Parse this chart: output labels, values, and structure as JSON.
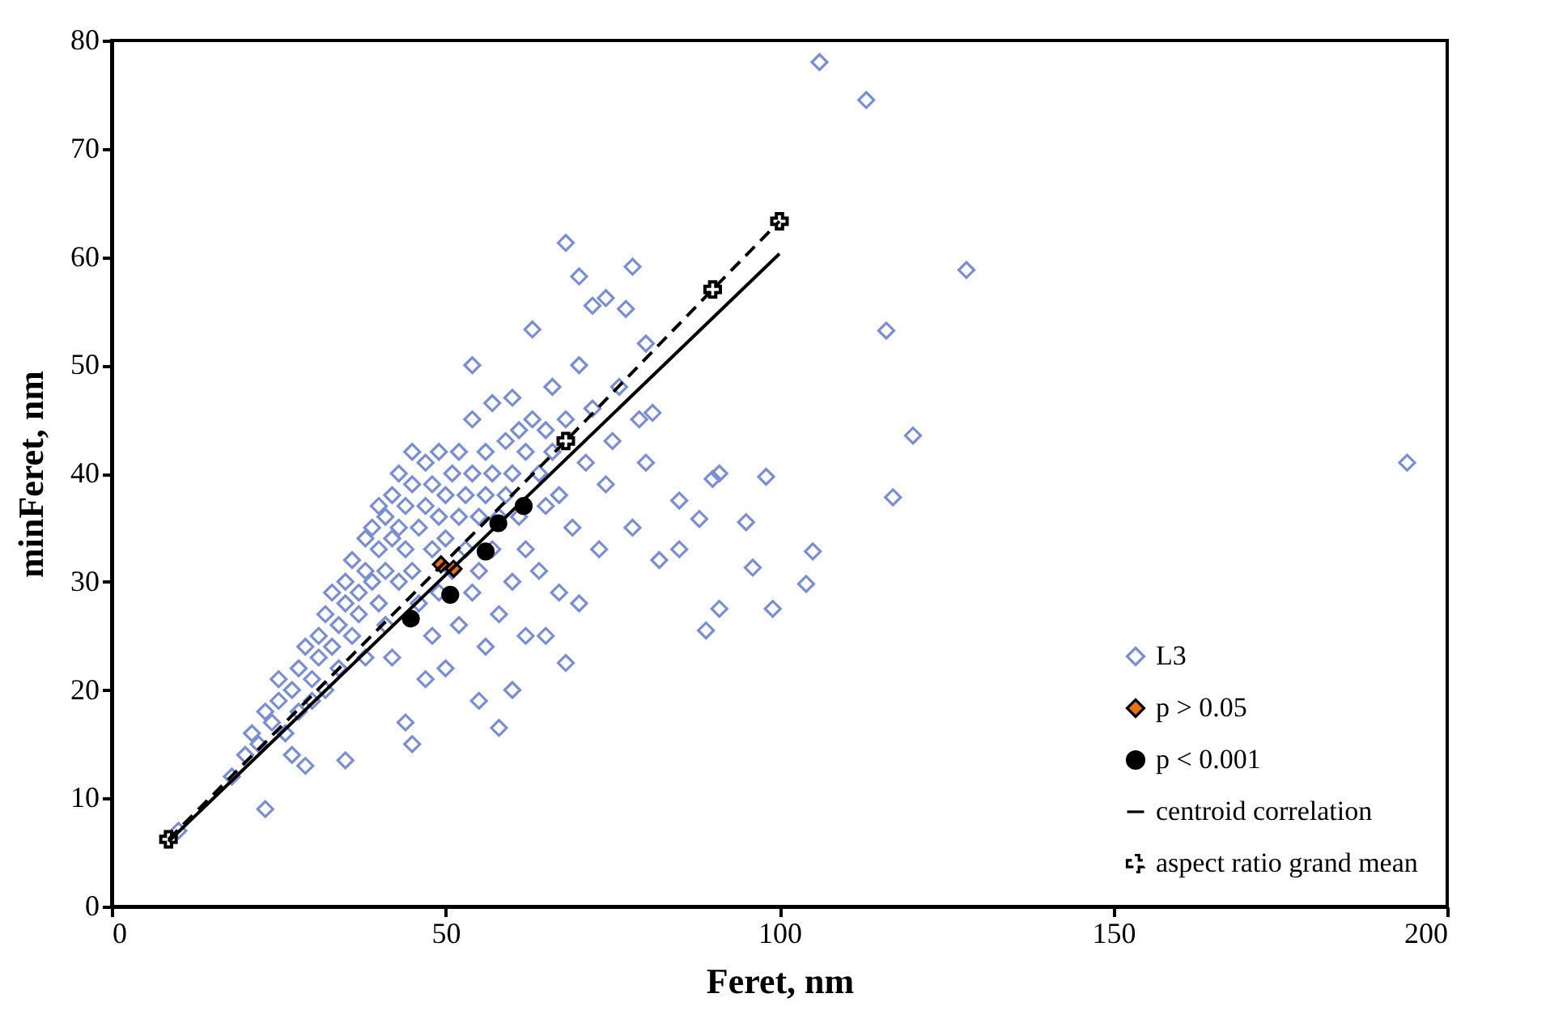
{
  "chart_data": {
    "type": "scatter",
    "xlabel": "Feret, nm",
    "ylabel": "minFeret, nm",
    "xlim": [
      0,
      200
    ],
    "ylim": [
      0,
      80
    ],
    "xticks": [
      0,
      50,
      100,
      150,
      200
    ],
    "yticks": [
      0,
      10,
      20,
      30,
      40,
      50,
      60,
      70,
      80
    ],
    "grid": false,
    "legend": "bottom right",
    "series": [
      {
        "name": "L3",
        "type": "scatter",
        "marker": "diamond",
        "color": "#7b8fd0",
        "x": [
          10,
          18,
          20,
          21,
          22,
          23,
          23,
          24,
          25,
          25,
          26,
          27,
          27,
          28,
          28,
          29,
          29,
          30,
          30,
          31,
          31,
          32,
          32,
          33,
          33,
          34,
          34,
          35,
          35,
          35,
          36,
          36,
          37,
          37,
          38,
          38,
          38,
          39,
          39,
          40,
          40,
          40,
          41,
          41,
          41,
          42,
          42,
          42,
          43,
          43,
          43,
          44,
          44,
          44,
          45,
          45,
          45,
          45,
          46,
          46,
          47,
          47,
          47,
          48,
          48,
          48,
          49,
          49,
          49,
          50,
          50,
          50,
          51,
          51,
          52,
          52,
          52,
          53,
          53,
          54,
          54,
          54,
          54,
          55,
          55,
          55,
          56,
          56,
          56,
          57,
          57,
          57,
          58,
          58,
          58,
          59,
          59,
          60,
          60,
          60,
          60,
          61,
          61,
          62,
          62,
          62,
          63,
          63,
          64,
          64,
          65,
          65,
          65,
          66,
          66,
          67,
          67,
          68,
          68,
          68,
          69,
          70,
          70,
          70,
          71,
          72,
          72,
          73,
          74,
          74,
          75,
          76,
          77,
          78,
          78,
          79,
          80,
          80,
          81,
          82,
          85,
          85,
          88,
          89,
          90,
          91,
          91,
          95,
          96,
          98,
          99,
          104,
          105,
          106,
          113,
          116,
          117,
          120,
          128,
          194
        ],
        "values": [
          7,
          12,
          14,
          16,
          15,
          18,
          9,
          17,
          19,
          21,
          16,
          20,
          14,
          22,
          18,
          13,
          24,
          21,
          19,
          25,
          23,
          27,
          20,
          24,
          29,
          26,
          22,
          28,
          30,
          13.5,
          25,
          32,
          29,
          27,
          31,
          34,
          23,
          30,
          35,
          28,
          33,
          37,
          31,
          36,
          26,
          34,
          38,
          23,
          30,
          35,
          40,
          33,
          37,
          17,
          31,
          39,
          15,
          42,
          35,
          28,
          37,
          41,
          21,
          33,
          39,
          25,
          36,
          42,
          29,
          34,
          38,
          22,
          40,
          31,
          36,
          42,
          26,
          38,
          33,
          40,
          45,
          29,
          50,
          36,
          31,
          19,
          42,
          38,
          24,
          46.5,
          40,
          33,
          36,
          27,
          16.5,
          43,
          38,
          40,
          47,
          30,
          20,
          36,
          44,
          42,
          33,
          25,
          53.3,
          45,
          40,
          31,
          44,
          37,
          25,
          42,
          48,
          38,
          29,
          61.3,
          45,
          22.5,
          35,
          58.2,
          50,
          28,
          41,
          55.5,
          46,
          33,
          56.2,
          39,
          43,
          48,
          55.2,
          59.1,
          35,
          45,
          52,
          41,
          45.6,
          32,
          37.5,
          33,
          35.8,
          25.5,
          39.5,
          40,
          27.5,
          35.5,
          31.3,
          39.7,
          27.5,
          29.8,
          32.8,
          78,
          74.5,
          53.2,
          37.8,
          43.5,
          58.8,
          41
        ]
      },
      {
        "name": "p > 0.05",
        "type": "scatter",
        "marker": "diamond",
        "color": "#e8711c",
        "x": [
          49.3,
          51.2
        ],
        "values": [
          31.6,
          31.2
        ]
      },
      {
        "name": "p < 0.001",
        "type": "scatter",
        "marker": "circle",
        "color": "#000000",
        "x": [
          44.8,
          50.7,
          56,
          57.9,
          61.7
        ],
        "values": [
          26.6,
          28.8,
          32.8,
          35.4,
          37
        ]
      },
      {
        "name": "centroid correlation",
        "type": "line",
        "marker": "none",
        "line_style": "solid",
        "color": "#000000",
        "x": [
          8.5,
          100
        ],
        "values": [
          6,
          60.3
        ]
      },
      {
        "name": "aspect ratio grand mean",
        "type": "line",
        "marker": "cross",
        "line_style": "dashed",
        "color": "#000000",
        "x": [
          8.5,
          68,
          90,
          100
        ],
        "values": [
          6.2,
          43,
          57,
          63.3
        ]
      }
    ]
  }
}
